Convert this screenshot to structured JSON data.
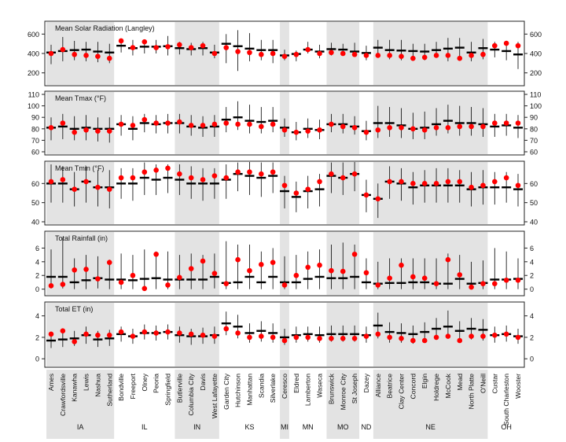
{
  "chart_data": {
    "type": "scatter",
    "description_axis": "Site",
    "sites": [
      "Ames",
      "Crawfordsville",
      "Kanawha",
      "Lewis",
      "Nashua",
      "Sutherland",
      "Bondville",
      "Freeport",
      "Olney",
      "Peoria",
      "Springfield",
      "Butlerville",
      "Columbia City",
      "Davis",
      "West Lafayette",
      "Garden City",
      "Hutchinson",
      "Manhattan",
      "Scandia",
      "Silverlake",
      "Ceresco",
      "Eldred",
      "Lamberton",
      "Waseca",
      "Brunswick",
      "Monroe City",
      "St Joseph",
      "Dazey",
      "Alliance",
      "Beatrice",
      "Clay Center",
      "Concord",
      "Elgin",
      "Holdrege",
      "McCook",
      "Mead",
      "North Platte",
      "O'Neill",
      "Custar",
      "South Charleston",
      "Wooster"
    ],
    "states": [
      {
        "name": "IA",
        "count": 6
      },
      {
        "name": "IL",
        "count": 5
      },
      {
        "name": "IN",
        "count": 4
      },
      {
        "name": "KS",
        "count": 5
      },
      {
        "name": "MI",
        "count": 1
      },
      {
        "name": "MN",
        "count": 3
      },
      {
        "name": "MO",
        "count": 3
      },
      {
        "name": "ND",
        "count": 1
      },
      {
        "name": "NE",
        "count": 10
      },
      {
        "name": "OH",
        "count": 3
      }
    ],
    "panels": [
      {
        "title": "Mean Solar Radiation (Langley)",
        "ylim": [
          100,
          700
        ],
        "ticks": [
          200,
          400,
          600
        ],
        "median": [
          410,
          425,
          435,
          440,
          420,
          410,
          480,
          455,
          470,
          470,
          475,
          455,
          445,
          455,
          410,
          500,
          475,
          450,
          435,
          435,
          380,
          395,
          440,
          420,
          445,
          440,
          420,
          405,
          460,
          435,
          430,
          425,
          420,
          435,
          450,
          460,
          410,
          455,
          440,
          425,
          390
        ],
        "low": [
          290,
          320,
          330,
          320,
          310,
          300,
          410,
          380,
          400,
          400,
          380,
          390,
          380,
          380,
          350,
          300,
          220,
          320,
          330,
          300,
          330,
          320,
          400,
          350,
          380,
          380,
          370,
          330,
          370,
          340,
          330,
          330,
          330,
          360,
          320,
          360,
          320,
          340,
          360,
          330,
          240
        ],
        "high": [
          490,
          570,
          530,
          520,
          520,
          500,
          540,
          540,
          540,
          540,
          580,
          520,
          510,
          520,
          490,
          600,
          640,
          610,
          540,
          540,
          440,
          430,
          520,
          490,
          510,
          500,
          510,
          480,
          540,
          540,
          540,
          500,
          500,
          520,
          560,
          560,
          520,
          550,
          520,
          510,
          520
        ],
        "observed": [
          400,
          440,
          390,
          380,
          370,
          350,
          530,
          460,
          520,
          460,
          470,
          490,
          460,
          480,
          400,
          460,
          420,
          410,
          390,
          400,
          370,
          390,
          440,
          400,
          410,
          400,
          390,
          380,
          380,
          380,
          370,
          350,
          360,
          380,
          380,
          350,
          380,
          390,
          480,
          505,
          480
        ]
      },
      {
        "title": "Mean Tmax (°F)",
        "ylim": [
          60,
          110
        ],
        "ticks": [
          60,
          70,
          80,
          90,
          100,
          110
        ],
        "median": [
          81,
          82,
          80,
          81,
          80,
          80,
          84,
          80,
          85,
          84,
          85,
          85,
          82,
          81,
          82,
          88,
          90,
          87,
          86,
          87,
          81,
          77,
          80,
          79,
          84,
          84,
          82,
          78,
          85,
          85,
          83,
          80,
          81,
          84,
          87,
          85,
          85,
          84,
          82,
          83,
          81
        ],
        "low": [
          70,
          71,
          70,
          70,
          69,
          68,
          74,
          70,
          77,
          76,
          76,
          76,
          74,
          73,
          73,
          77,
          79,
          76,
          76,
          77,
          73,
          70,
          72,
          71,
          77,
          76,
          75,
          70,
          72,
          73,
          72,
          71,
          71,
          74,
          76,
          74,
          74,
          73,
          73,
          74,
          72
        ],
        "high": [
          90,
          93,
          91,
          92,
          90,
          90,
          92,
          91,
          93,
          92,
          93,
          93,
          92,
          91,
          92,
          99,
          104,
          101,
          99,
          99,
          89,
          86,
          89,
          88,
          93,
          93,
          91,
          87,
          100,
          99,
          98,
          94,
          95,
          98,
          101,
          100,
          99,
          98,
          93,
          93,
          92
        ],
        "observed": [
          81,
          85,
          77,
          79,
          78,
          78,
          84,
          83,
          88,
          85,
          85,
          86,
          83,
          83,
          84,
          85,
          84,
          84,
          82,
          84,
          79,
          77,
          78,
          79,
          84,
          82,
          81,
          77,
          79,
          81,
          81,
          80,
          79,
          81,
          81,
          82,
          82,
          82,
          85,
          85,
          85
        ]
      },
      {
        "title": "Mean Tmin (°F)",
        "ylim": [
          40,
          70
        ],
        "ticks": [
          40,
          50,
          60
        ],
        "median": [
          60,
          60,
          57,
          61,
          58,
          58,
          60,
          60,
          63,
          62,
          63,
          62,
          60,
          60,
          60,
          62,
          65,
          64,
          63,
          64,
          56,
          53,
          56,
          57,
          64,
          63,
          65,
          54,
          52,
          61,
          60,
          58,
          59,
          59,
          59,
          59,
          57,
          58,
          58,
          58,
          57
        ],
        "low": [
          50,
          50,
          48,
          50,
          48,
          47,
          52,
          51,
          54,
          54,
          55,
          54,
          52,
          51,
          52,
          52,
          56,
          54,
          53,
          55,
          47,
          45,
          47,
          48,
          55,
          54,
          56,
          45,
          42,
          52,
          51,
          49,
          50,
          50,
          50,
          50,
          48,
          49,
          49,
          50,
          48
        ],
        "high": [
          70,
          69,
          66,
          69,
          67,
          67,
          68,
          68,
          71,
          70,
          70,
          70,
          69,
          68,
          68,
          70,
          71,
          72,
          71,
          71,
          64,
          61,
          64,
          65,
          71,
          71,
          72,
          62,
          60,
          69,
          68,
          66,
          67,
          68,
          68,
          67,
          66,
          67,
          66,
          66,
          65
        ],
        "observed": [
          61,
          62,
          57,
          61,
          58,
          57,
          63,
          63,
          66,
          67,
          68,
          65,
          63,
          62,
          64,
          63,
          66,
          66,
          65,
          66,
          59,
          55,
          57,
          61,
          65,
          63,
          65,
          54,
          52,
          61,
          61,
          60,
          60,
          60,
          61,
          61,
          58,
          59,
          61,
          63,
          59
        ]
      },
      {
        "title": "Total Rainfall (in)",
        "ylim": [
          -0.5,
          8
        ],
        "ticks": [
          0,
          2,
          4,
          6
        ],
        "median": [
          1.8,
          1.8,
          1.0,
          1.3,
          1.6,
          1.4,
          1.4,
          1.3,
          1.5,
          1.6,
          1.4,
          1.4,
          1.4,
          1.4,
          1.8,
          0.9,
          1.0,
          1.8,
          1.0,
          1.8,
          1.0,
          1.0,
          1.5,
          1.8,
          1.6,
          1.6,
          1.8,
          1.0,
          0.8,
          0.9,
          0.9,
          1.0,
          1.0,
          0.8,
          0.8,
          1.5,
          0.8,
          0.9,
          1.4,
          1.4,
          1.5
        ],
        "low": [
          0.1,
          0.1,
          0.0,
          0.0,
          0.1,
          0.0,
          0.0,
          0.0,
          0.0,
          0.0,
          0.0,
          0.0,
          0.0,
          0.0,
          0.1,
          0.0,
          0.0,
          0.0,
          0.0,
          0.0,
          0.0,
          0.0,
          0.0,
          0.0,
          0.0,
          0.0,
          0.0,
          0.0,
          0.0,
          0.0,
          0.0,
          0.0,
          0.0,
          0.0,
          0.0,
          0.0,
          0.0,
          0.0,
          0.0,
          0.0,
          0.0
        ],
        "high": [
          5.8,
          7.5,
          4.5,
          5.0,
          4.8,
          4.3,
          5.2,
          5.0,
          5.8,
          5.5,
          5.5,
          5.0,
          5.2,
          5.0,
          5.2,
          7.0,
          6.5,
          6.5,
          5.5,
          6.0,
          4.8,
          5.0,
          5.5,
          5.8,
          6.5,
          6.8,
          6.5,
          4.5,
          4.0,
          4.5,
          4.5,
          4.5,
          4.5,
          4.5,
          5.2,
          5.0,
          4.0,
          4.2,
          6.0,
          5.5,
          4.5
        ],
        "observed": [
          0.5,
          0.7,
          2.8,
          2.9,
          1.5,
          3.9,
          1.0,
          2.0,
          0.1,
          5.1,
          0.6,
          1.7,
          3.0,
          4.1,
          2.3,
          0.8,
          4.3,
          2.7,
          3.6,
          3.9,
          0.6,
          2.0,
          3.2,
          3.5,
          2.7,
          2.6,
          5.1,
          2.4,
          0.6,
          1.6,
          3.5,
          1.8,
          1.6,
          0.8,
          4.3,
          2.1,
          0.3,
          0.8,
          0.8,
          1.3,
          1.3
        ]
      },
      {
        "title": "Total ET (in)",
        "ylim": [
          -0.5,
          5
        ],
        "ticks": [
          0,
          2,
          4
        ],
        "median": [
          1.7,
          1.8,
          1.9,
          2.2,
          1.8,
          1.9,
          2.3,
          2.1,
          2.4,
          2.4,
          2.5,
          2.2,
          2.1,
          2.1,
          2.2,
          3.3,
          3.0,
          2.4,
          2.6,
          2.4,
          2.0,
          2.2,
          2.3,
          2.2,
          2.3,
          2.3,
          2.3,
          2.2,
          3.1,
          2.5,
          2.4,
          2.3,
          2.5,
          2.8,
          3.0,
          2.6,
          2.8,
          2.7,
          2.2,
          2.3,
          2.1
        ],
        "low": [
          1.0,
          1.1,
          1.2,
          1.4,
          1.1,
          1.2,
          1.6,
          1.4,
          1.8,
          1.7,
          1.8,
          1.5,
          1.3,
          1.4,
          1.4,
          2.2,
          1.9,
          1.5,
          1.6,
          1.5,
          1.3,
          1.5,
          1.6,
          1.5,
          1.6,
          1.6,
          1.6,
          1.5,
          1.9,
          1.5,
          1.5,
          1.4,
          1.5,
          1.8,
          1.9,
          1.6,
          1.8,
          1.7,
          1.5,
          1.6,
          1.4
        ],
        "high": [
          2.5,
          2.6,
          2.6,
          3.0,
          2.6,
          2.7,
          3.0,
          2.8,
          3.2,
          3.1,
          3.2,
          3.0,
          2.8,
          2.9,
          3.0,
          4.4,
          4.1,
          3.3,
          3.5,
          3.3,
          2.8,
          3.0,
          3.0,
          3.0,
          3.1,
          3.1,
          3.1,
          3.0,
          4.3,
          3.4,
          3.3,
          3.1,
          3.4,
          3.8,
          4.5,
          3.5,
          3.8,
          3.7,
          3.0,
          3.1,
          2.8
        ],
        "observed": [
          2.3,
          2.6,
          1.6,
          2.3,
          2.2,
          2.2,
          2.5,
          2.1,
          2.5,
          2.4,
          2.5,
          2.4,
          2.3,
          2.2,
          2.1,
          2.8,
          2.4,
          2.0,
          2.1,
          2.0,
          1.7,
          2.0,
          2.0,
          1.9,
          1.9,
          1.9,
          1.9,
          2.1,
          2.3,
          2.0,
          1.9,
          1.7,
          1.7,
          2.0,
          2.1,
          1.7,
          2.1,
          2.1,
          2.2,
          2.3,
          2.0
        ]
      }
    ],
    "colors": {
      "shade": "#e3e3e3",
      "observed": "#ff0000",
      "median": "#000000",
      "range": "#000000",
      "frame": "#222222"
    }
  }
}
